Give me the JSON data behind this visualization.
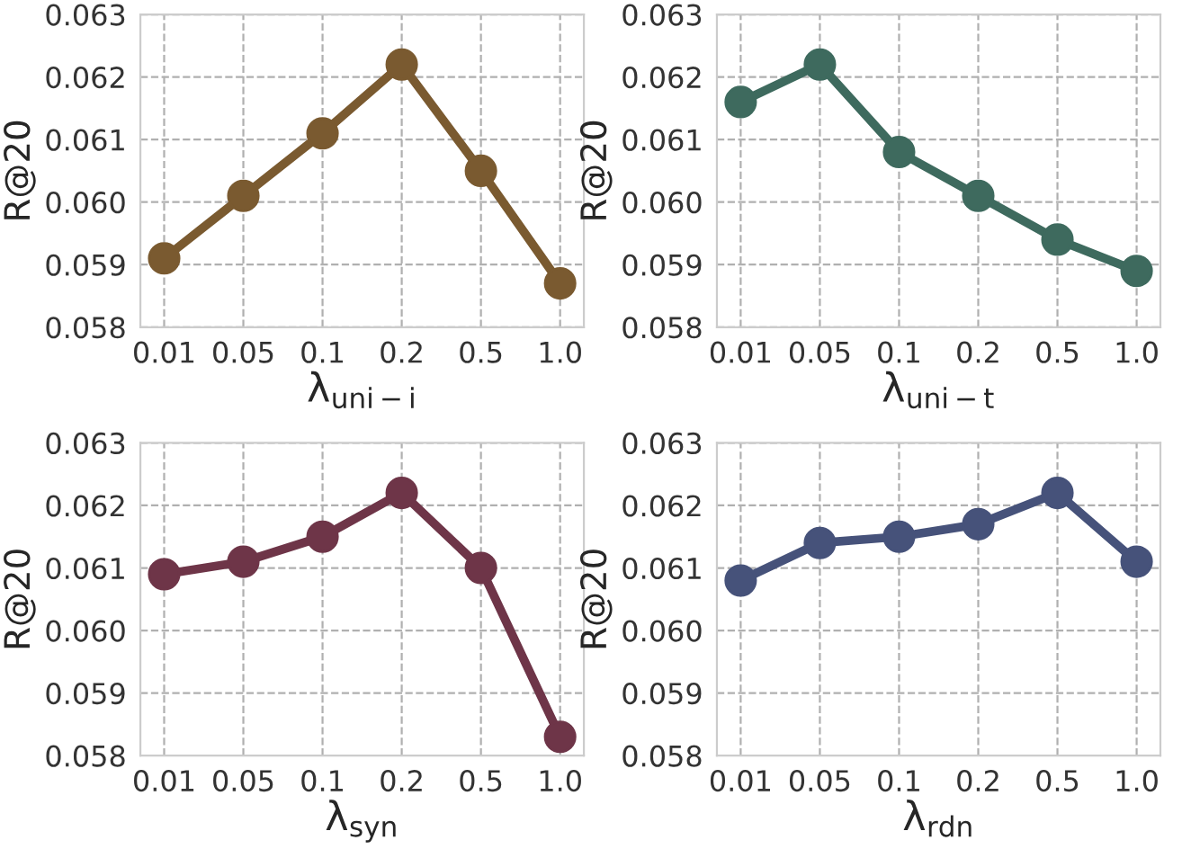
{
  "chart_data": [
    {
      "type": "line",
      "categories": [
        "0.01",
        "0.05",
        "0.1",
        "0.2",
        "0.5",
        "1.0"
      ],
      "xlabel": "λ$_{uni−i}$",
      "ylabel": "R@20",
      "ylim": [
        0.058,
        0.063
      ],
      "yticks": [
        {
          "value": 0.058,
          "label": "0.058"
        },
        {
          "value": 0.059,
          "label": "0.059"
        },
        {
          "value": 0.06,
          "label": "0.060"
        },
        {
          "value": 0.061,
          "label": "0.061"
        },
        {
          "value": 0.062,
          "label": "0.062"
        },
        {
          "value": 0.063,
          "label": "0.063"
        }
      ],
      "grid": true,
      "marker": "circle",
      "line_style": "solid",
      "series": [
        {
          "color": "#7a5a30",
          "values": [
            0.0591,
            0.0601,
            0.0611,
            0.0622,
            0.0605,
            0.0587
          ]
        }
      ]
    },
    {
      "type": "line",
      "categories": [
        "0.01",
        "0.05",
        "0.1",
        "0.2",
        "0.5",
        "1.0"
      ],
      "xlabel": "λ$_{uni−t}$",
      "ylabel": "R@20",
      "ylim": [
        0.058,
        0.063
      ],
      "yticks": [
        {
          "value": 0.058,
          "label": "0.058"
        },
        {
          "value": 0.059,
          "label": "0.059"
        },
        {
          "value": 0.06,
          "label": "0.060"
        },
        {
          "value": 0.061,
          "label": "0.061"
        },
        {
          "value": 0.062,
          "label": "0.062"
        },
        {
          "value": 0.063,
          "label": "0.063"
        }
      ],
      "grid": true,
      "marker": "circle",
      "line_style": "solid",
      "series": [
        {
          "color": "#3e6a5e",
          "values": [
            0.0616,
            0.0622,
            0.0608,
            0.0601,
            0.0594,
            0.0589
          ]
        }
      ]
    },
    {
      "type": "line",
      "categories": [
        "0.01",
        "0.05",
        "0.1",
        "0.2",
        "0.5",
        "1.0"
      ],
      "xlabel": "λ$_{syn}$",
      "ylabel": "R@20",
      "ylim": [
        0.058,
        0.063
      ],
      "yticks": [
        {
          "value": 0.058,
          "label": "0.058"
        },
        {
          "value": 0.059,
          "label": "0.059"
        },
        {
          "value": 0.06,
          "label": "0.060"
        },
        {
          "value": 0.061,
          "label": "0.061"
        },
        {
          "value": 0.062,
          "label": "0.062"
        },
        {
          "value": 0.063,
          "label": "0.063"
        }
      ],
      "grid": true,
      "marker": "circle",
      "line_style": "solid",
      "series": [
        {
          "color": "#6e3548",
          "values": [
            0.0609,
            0.0611,
            0.0615,
            0.0622,
            0.061,
            0.0583
          ]
        }
      ]
    },
    {
      "type": "line",
      "categories": [
        "0.01",
        "0.05",
        "0.1",
        "0.2",
        "0.5",
        "1.0"
      ],
      "xlabel": "λ$_{rdn}$",
      "ylabel": "R@20",
      "ylim": [
        0.058,
        0.063
      ],
      "yticks": [
        {
          "value": 0.058,
          "label": "0.058"
        },
        {
          "value": 0.059,
          "label": "0.059"
        },
        {
          "value": 0.06,
          "label": "0.060"
        },
        {
          "value": 0.061,
          "label": "0.061"
        },
        {
          "value": 0.062,
          "label": "0.062"
        },
        {
          "value": 0.063,
          "label": "0.063"
        }
      ],
      "grid": true,
      "marker": "circle",
      "line_style": "solid",
      "series": [
        {
          "color": "#46527a",
          "values": [
            0.0608,
            0.0614,
            0.0615,
            0.0617,
            0.0622,
            0.0611
          ]
        }
      ]
    }
  ]
}
